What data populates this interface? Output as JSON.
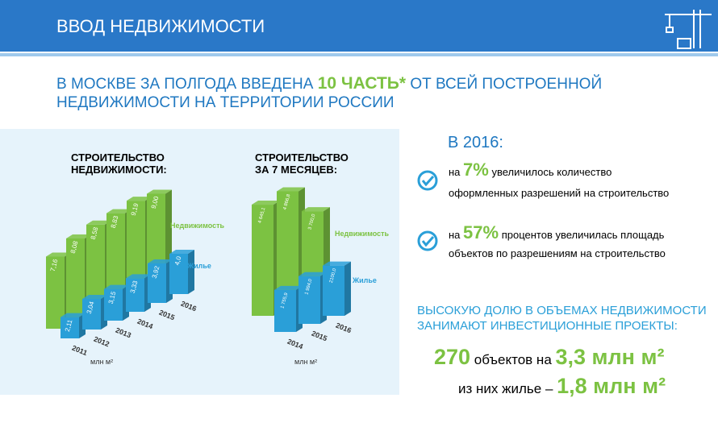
{
  "header": {
    "title": "ВВОД НЕДВИЖИМОСТИ"
  },
  "headline": {
    "part1": "В МОСКВЕ ЗА ПОЛГОДА ВВЕДЕНА",
    "highlight": "10 ЧАСТЬ*",
    "part2": "ОТ ВСЕЙ ПОСТРОЕННОЙ",
    "line2": "НЕДВИЖИМОСТИ НА ТЕРРИТОРИИ РОССИИ"
  },
  "chart_data": [
    {
      "type": "bar3d",
      "title": "СТРОИТЕЛЬСТВО НЕДВИЖИМОСТИ:",
      "unit": "млн м²",
      "categories": [
        "2011",
        "2012",
        "2013",
        "2014",
        "2015",
        "2016"
      ],
      "series": [
        {
          "name": "Недвижимость",
          "color": "#7cc242",
          "values": [
            7.16,
            8.08,
            8.58,
            8.83,
            9.19,
            9.0
          ],
          "value_labels": [
            "7,16",
            "8,08",
            "8,58",
            "8,83",
            "9,19",
            "9,00"
          ]
        },
        {
          "name": "Жилье",
          "color": "#2a9fd8",
          "values": [
            2.11,
            3.04,
            3.15,
            3.33,
            3.92,
            4.0
          ],
          "value_labels": [
            "2,11",
            "3,04",
            "3,15",
            "3,33",
            "3,92",
            "4,0"
          ]
        }
      ]
    },
    {
      "type": "bar3d",
      "title": "СТРОИТЕЛЬСТВО ЗА 7 МЕСЯЦЕВ:",
      "unit": "млн м²",
      "categories": [
        "2014",
        "2015",
        "2016"
      ],
      "series": [
        {
          "name": "Недвижимость",
          "color": "#7cc242",
          "values": [
            4645.1,
            4866.8,
            3700.0
          ],
          "value_labels": [
            "4 645,1",
            "4 866,8",
            "3 700,0"
          ]
        },
        {
          "name": "Жилье",
          "color": "#2a9fd8",
          "values": [
            1755.9,
            1994.0,
            2100.0
          ],
          "value_labels": [
            "1 755,9",
            "1 994,0",
            "2100,0"
          ]
        }
      ]
    }
  ],
  "right": {
    "year": "В 2016:",
    "items": [
      {
        "pre": "на",
        "value": "7%",
        "text": "увеличилось количество",
        "line2": "оформленных разрешений на строительство"
      },
      {
        "pre": "на",
        "value": "57%",
        "text": "процентов увеличилась площадь",
        "line2": "объектов по разрешениям на строительство"
      }
    ],
    "note_line1": "ВЫСОКУЮ ДОЛЮ В ОБЪЕМАХ НЕДВИЖИМОСТИ",
    "note_line2": "ЗАНИМАЮТ ИНВЕСТИЦИОННЫЕ ПРОЕКТЫ:",
    "count": "270",
    "count_text": "объектов на",
    "area": "3,3 млн м²",
    "housing_text": "из них жилье –",
    "housing_area": "1,8 млн м²"
  }
}
